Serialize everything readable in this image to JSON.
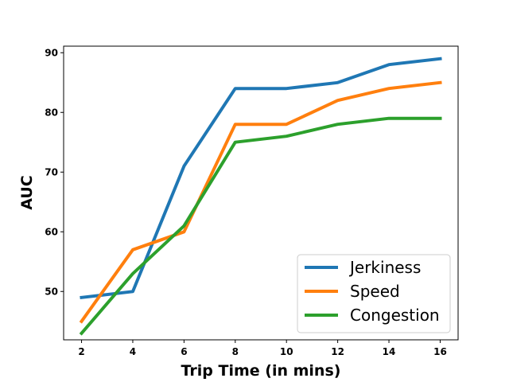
{
  "chart_data": {
    "type": "line",
    "title": "",
    "xlabel": "Trip Time (in mins)",
    "ylabel": "AUC",
    "x": [
      2,
      4,
      6,
      8,
      10,
      12,
      14,
      16
    ],
    "xticks": [
      "2",
      "4",
      "6",
      "8",
      "10",
      "12",
      "14",
      "16"
    ],
    "yticks": [
      "50",
      "60",
      "70",
      "80",
      "90"
    ],
    "xlim": [
      1.3,
      16.7
    ],
    "ylim": [
      41.9,
      91.1
    ],
    "grid": false,
    "legend_position": "lower-right",
    "series": [
      {
        "name": "Jerkiness",
        "color": "#1f77b4",
        "values": [
          49,
          50,
          71,
          84,
          84,
          85,
          88,
          89
        ]
      },
      {
        "name": "Speed",
        "color": "#ff7f0e",
        "values": [
          45,
          57,
          60,
          78,
          78,
          82,
          84,
          85
        ]
      },
      {
        "name": "Congestion",
        "color": "#2ca02c",
        "values": [
          43,
          53,
          61,
          75,
          76,
          78,
          79,
          79
        ]
      }
    ]
  }
}
